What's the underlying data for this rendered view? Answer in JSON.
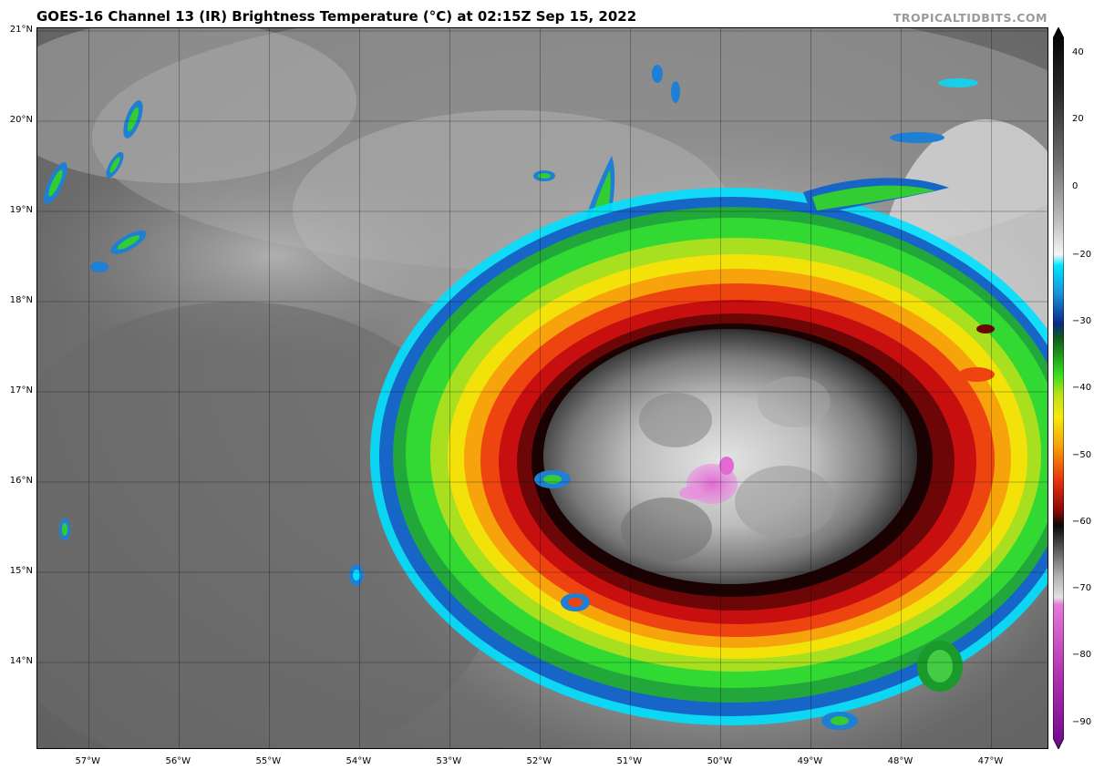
{
  "header": {
    "title": "GOES-16 Channel 13 (IR) Brightness Temperature (°C) at 02:15Z Sep 15, 2022",
    "credit": "TROPICALTIDBITS.COM"
  },
  "axes": {
    "lat_labels": [
      "21°N",
      "20°N",
      "19°N",
      "18°N",
      "17°N",
      "16°N",
      "15°N",
      "14°N"
    ],
    "lon_labels": [
      "57°W",
      "56°W",
      "55°W",
      "54°W",
      "53°W",
      "52°W",
      "51°W",
      "50°W",
      "49°W",
      "48°W",
      "47°W"
    ],
    "lat_range": [
      13.03,
      21.03
    ],
    "lon_range": [
      -57.57,
      -46.36
    ],
    "grid": true
  },
  "colorbar": {
    "ticks": [
      "40",
      "20",
      "0",
      "−20",
      "−30",
      "−40",
      "−50",
      "−60",
      "−70",
      "−80",
      "−90"
    ],
    "tick_values": [
      40,
      20,
      0,
      -20,
      -30,
      -40,
      -50,
      -60,
      -70,
      -80,
      -90
    ],
    "range": [
      -95,
      45
    ]
  },
  "storm": {
    "center_lat": 15.95,
    "center_lon": -50.0
  }
}
